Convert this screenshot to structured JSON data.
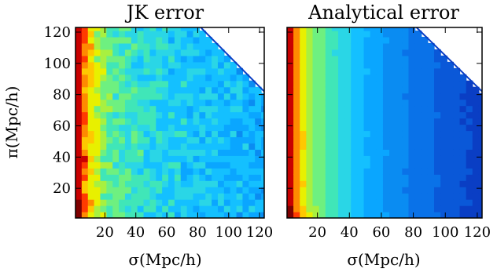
{
  "chart_data": [
    {
      "type": "heatmap",
      "title": "JK error",
      "xlabel": "σ(Mpc/h)",
      "ylabel": "π(Mpc/h)",
      "xlim": [
        1,
        123
      ],
      "ylim": [
        1,
        123
      ],
      "xticks": [
        "20",
        "40",
        "60",
        "80",
        "100",
        "120"
      ],
      "yticks": [
        "20",
        "40",
        "60",
        "80",
        "100",
        "120"
      ],
      "colormap": [
        "#7f0000",
        "#c80000",
        "#ff3a00",
        "#ff8a00",
        "#ffc800",
        "#e8f000",
        "#a8f040",
        "#6ef080",
        "#40e6b8",
        "#2ad6e6",
        "#14c0ff",
        "#0aa6ff",
        "#0a8cf2",
        "#0a72e8",
        "#0a58d8",
        "#0a3ec4"
      ],
      "level_profile": [
        [
          2,
          0
        ],
        [
          6,
          2
        ],
        [
          10,
          4
        ],
        [
          16,
          6
        ],
        [
          24,
          7.5
        ],
        [
          40,
          8.5
        ],
        [
          60,
          9.3
        ],
        [
          80,
          9.8
        ],
        [
          100,
          10.2
        ],
        [
          123,
          10.8
        ]
      ],
      "noise": 1.2,
      "masked_region": "upper-right (σ + π > 205)"
    },
    {
      "type": "heatmap",
      "title": "Analytical error",
      "xlabel": "σ(Mpc/h)",
      "ylabel": "",
      "xlim": [
        1,
        123
      ],
      "ylim": [
        1,
        123
      ],
      "xticks": [
        "20",
        "40",
        "60",
        "80",
        "100",
        "120"
      ],
      "yticks": [],
      "colormap": [
        "#7f0000",
        "#c80000",
        "#ff3a00",
        "#ff8a00",
        "#ffc800",
        "#e8f000",
        "#a8f040",
        "#6ef080",
        "#40e6b8",
        "#2ad6e6",
        "#14c0ff",
        "#0aa6ff",
        "#0a8cf2",
        "#0a72e8",
        "#0a58d8",
        "#0a3ec4"
      ],
      "level_profile": [
        [
          2,
          0
        ],
        [
          5,
          2
        ],
        [
          8,
          3.5
        ],
        [
          12,
          5
        ],
        [
          18,
          6.5
        ],
        [
          28,
          8
        ],
        [
          40,
          9.5
        ],
        [
          55,
          11
        ],
        [
          72,
          12.3
        ],
        [
          90,
          13.3
        ],
        [
          105,
          14.2
        ],
        [
          123,
          14.8
        ]
      ],
      "noise": 0.15,
      "masked_region": "upper-right (σ + π > 205)"
    }
  ]
}
